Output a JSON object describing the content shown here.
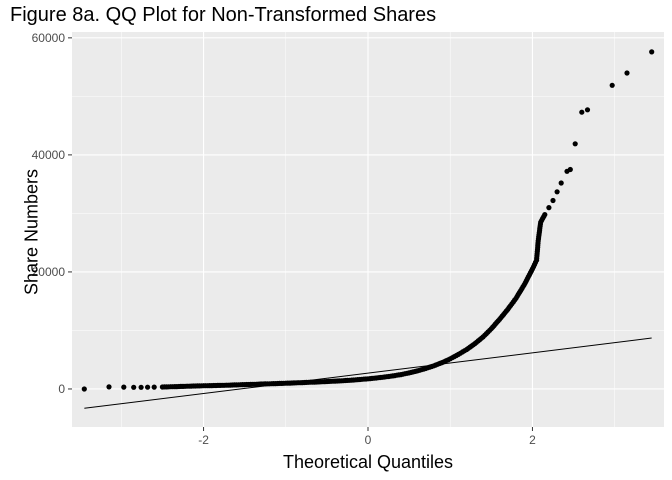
{
  "chart_data": {
    "type": "scatter",
    "title": "Figure 8a. QQ Plot for Non-Transformed Shares",
    "xlabel": "Theoretical Quantiles",
    "ylabel": "Share Numbers",
    "xlim": [
      -3.6,
      3.6
    ],
    "ylim": [
      -6500,
      61000
    ],
    "x_ticks": [
      -2,
      0,
      2
    ],
    "x_tick_labels": [
      "-2",
      "0",
      "2"
    ],
    "y_ticks": [
      0,
      20000,
      40000,
      60000
    ],
    "y_tick_labels": [
      "0",
      "20000",
      "40000",
      "60000"
    ],
    "grid": true,
    "background": "#ebebeb",
    "point_color": "#000000",
    "reference_line": {
      "x": [
        -3.45,
        3.45
      ],
      "y": [
        -3300,
        8700
      ]
    },
    "series": [
      {
        "points": [
          [
            -3.45,
            0
          ],
          [
            -3.15,
            350
          ],
          [
            -2.97,
            320
          ],
          [
            -2.85,
            280
          ],
          [
            -2.76,
            290
          ],
          [
            -2.68,
            300
          ],
          [
            -2.6,
            310
          ],
          [
            -2.5,
            340
          ],
          [
            -2.4,
            380
          ],
          [
            -2.3,
            420
          ],
          [
            -2.2,
            470
          ],
          [
            -2.1,
            510
          ],
          [
            -2.0,
            550
          ],
          [
            -1.9,
            580
          ],
          [
            -1.8,
            610
          ],
          [
            -1.7,
            650
          ],
          [
            -1.6,
            700
          ],
          [
            -1.5,
            750
          ],
          [
            -1.4,
            790
          ],
          [
            -1.3,
            840
          ],
          [
            -1.2,
            890
          ],
          [
            -1.1,
            930
          ],
          [
            -1.0,
            980
          ],
          [
            -0.9,
            1040
          ],
          [
            -0.8,
            1090
          ],
          [
            -0.7,
            1150
          ],
          [
            -0.6,
            1210
          ],
          [
            -0.5,
            1270
          ],
          [
            -0.4,
            1340
          ],
          [
            -0.3,
            1420
          ],
          [
            -0.2,
            1510
          ],
          [
            -0.1,
            1620
          ],
          [
            0.0,
            1740
          ],
          [
            0.1,
            1880
          ],
          [
            0.2,
            2040
          ],
          [
            0.3,
            2230
          ],
          [
            0.4,
            2460
          ],
          [
            0.5,
            2740
          ],
          [
            0.6,
            3080
          ],
          [
            0.7,
            3500
          ],
          [
            0.8,
            3960
          ],
          [
            0.9,
            4500
          ],
          [
            1.0,
            5150
          ],
          [
            1.1,
            5900
          ],
          [
            1.2,
            6750
          ],
          [
            1.3,
            7750
          ],
          [
            1.4,
            8900
          ],
          [
            1.5,
            10300
          ],
          [
            1.6,
            11900
          ],
          [
            1.7,
            13600
          ],
          [
            1.8,
            15500
          ],
          [
            1.9,
            17800
          ],
          [
            2.0,
            20500
          ],
          [
            2.05,
            22000
          ],
          [
            2.07,
            25300
          ],
          [
            2.1,
            28500
          ],
          [
            2.15,
            29800
          ],
          [
            2.2,
            31000
          ],
          [
            2.25,
            32200
          ],
          [
            2.3,
            33700
          ],
          [
            2.35,
            35200
          ],
          [
            2.42,
            37200
          ],
          [
            2.46,
            37500
          ],
          [
            2.52,
            41900
          ],
          [
            2.6,
            47300
          ],
          [
            2.67,
            47700
          ],
          [
            2.97,
            51900
          ],
          [
            3.15,
            54000
          ],
          [
            3.45,
            57600
          ]
        ]
      }
    ]
  }
}
